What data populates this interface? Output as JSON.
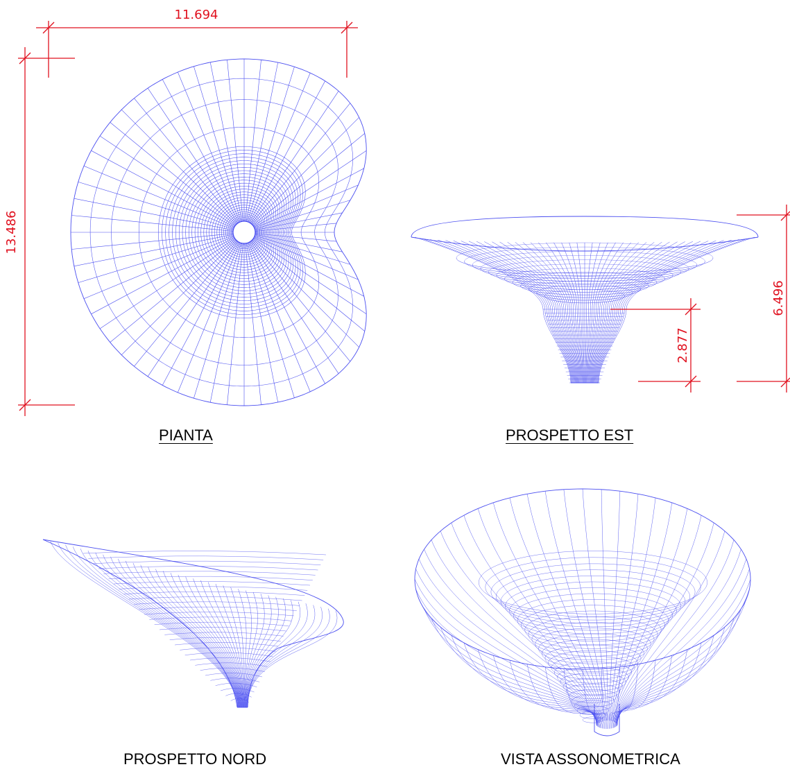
{
  "colors": {
    "mesh": "#4a4ef0",
    "dimension": "#e0101e",
    "title": "#000000",
    "background": "#ffffff"
  },
  "views": [
    {
      "id": "pianta",
      "title": "PIANTA"
    },
    {
      "id": "prospetto-est",
      "title": "PROSPETTO EST"
    },
    {
      "id": "prospetto-nord",
      "title": "PROSPETTO NORD"
    },
    {
      "id": "vista-assonometrica",
      "title": "VISTA ASSONOMETRICA"
    }
  ],
  "dimensions": {
    "plan_width": "11.694",
    "plan_height": "13.486",
    "total_height": "6.496",
    "stem_height": "2.877"
  }
}
